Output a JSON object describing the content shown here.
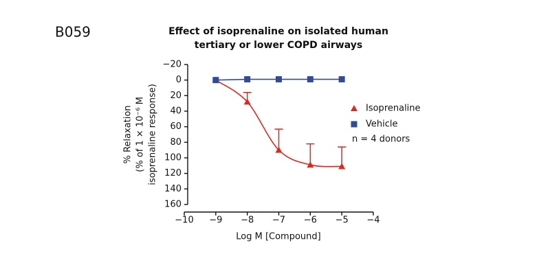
{
  "chart_data": {
    "type": "line",
    "panel_label": "B059",
    "title": [
      "Effect of isoprenaline on  isolated human",
      "tertiary or lower COPD airways"
    ],
    "xlabel": "Log M [Compound]",
    "ylabel": [
      "% Relaxation",
      "(% of 1 × 10⁻⁶ M",
      "isoprenaline response)"
    ],
    "annotation": "n = 4 donors",
    "x": [
      -9,
      -8,
      -7,
      -6,
      -5
    ],
    "series": [
      {
        "name": "Isoprenaline",
        "color": "#e0261f",
        "marker": "triangle",
        "curve": "smooth",
        "values": [
          0,
          28,
          90,
          109,
          111
        ],
        "errors": [
          0,
          12,
          27,
          27,
          25
        ]
      },
      {
        "name": "Vehicle",
        "color": "#2e4b9c",
        "marker": "square",
        "curve": "straight",
        "values": [
          0,
          -1,
          -1,
          -1,
          -1
        ]
      }
    ],
    "xlim": [
      -10,
      -4
    ],
    "xticks": [
      {
        "value": -10,
        "label": "−10"
      },
      {
        "value": -9,
        "label": "−9"
      },
      {
        "value": -8,
        "label": "−8"
      },
      {
        "value": -7,
        "label": "−7"
      },
      {
        "value": -6,
        "label": "−6"
      },
      {
        "value": -5,
        "label": "−5"
      },
      {
        "value": -4,
        "label": "−4"
      }
    ],
    "ylim": [
      -20,
      160
    ],
    "y_inverted": true,
    "yticks": [
      {
        "value": -20,
        "label": "−20"
      },
      0,
      20,
      40,
      60,
      80,
      100,
      120,
      140,
      160
    ],
    "grid": false
  }
}
